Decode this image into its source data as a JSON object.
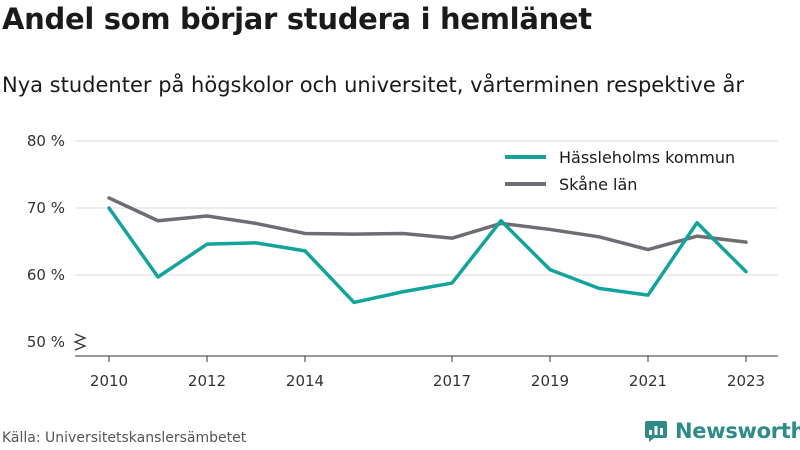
{
  "title": "Andel som börjar studera i hemlänet",
  "subtitle": "Nya studenter på högskolor och universitet, vårterminen respektive år",
  "source": "Källa: Universitetskanslersämbetet",
  "brand": {
    "name": "Newsworthy",
    "icon": "newsworthy-logo-icon"
  },
  "chart_data": {
    "type": "line",
    "x": [
      2010,
      2011,
      2012,
      2013,
      2014,
      2015,
      2016,
      2017,
      2018,
      2019,
      2020,
      2021,
      2022,
      2023
    ],
    "x_tick_labels": [
      "2010",
      "2012",
      "2014",
      "2017",
      "2019",
      "2021",
      "2023"
    ],
    "x_tick_values": [
      2010,
      2012,
      2014,
      2017,
      2019,
      2021,
      2023
    ],
    "y_tick_labels": [
      "50 %",
      "60 %",
      "70 %",
      "80 %"
    ],
    "y_tick_values": [
      50,
      60,
      70,
      80
    ],
    "ylim": [
      50,
      80
    ],
    "xlim": [
      2010,
      2023
    ],
    "grid": "horizontal",
    "legend_position": "top-right",
    "series": [
      {
        "name": "Hässleholms kommun",
        "color": "#12a39a",
        "values": [
          70.0,
          59.7,
          64.6,
          64.8,
          63.6,
          55.9,
          57.5,
          58.8,
          68.1,
          60.8,
          58.0,
          57.0,
          67.8,
          60.5
        ]
      },
      {
        "name": "Skåne län",
        "color": "#6f6c74",
        "values": [
          71.5,
          68.1,
          68.8,
          67.7,
          66.2,
          66.1,
          66.2,
          65.5,
          67.7,
          66.8,
          65.7,
          63.8,
          65.8,
          64.9
        ]
      }
    ]
  }
}
